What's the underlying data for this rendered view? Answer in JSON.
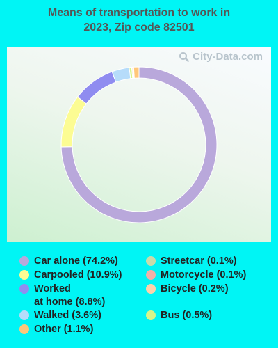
{
  "chart_data": {
    "type": "pie",
    "title_line1": "Means of transportation to work in",
    "title_line2": "2023, Zip code 82501",
    "watermark": "City-Data.com",
    "slices": [
      {
        "label": "Car alone (74.2%)",
        "value": 74.2,
        "color": "#b9a8db"
      },
      {
        "label": "Carpooled (10.9%)",
        "value": 10.9,
        "color": "#fcfc93"
      },
      {
        "label": "Worked\nat home (8.8%)",
        "value": 8.8,
        "color": "#8f8cf0"
      },
      {
        "label": "Walked (3.6%)",
        "value": 3.6,
        "color": "#b6dcfa"
      },
      {
        "label": "Other (1.1%)",
        "value": 1.1,
        "color": "#ffc77a"
      },
      {
        "label": "Streetcar (0.1%)",
        "value": 0.1,
        "color": "#c9dbaa"
      },
      {
        "label": "Motorcycle (0.1%)",
        "value": 0.1,
        "color": "#f2b0a8"
      },
      {
        "label": "Bicycle (0.2%)",
        "value": 0.2,
        "color": "#fcd2ab"
      },
      {
        "label": "Bus (0.5%)",
        "value": 0.5,
        "color": "#d6f58a"
      }
    ],
    "draw_order": [
      0,
      1,
      2,
      3,
      8,
      7,
      6,
      5,
      4
    ]
  }
}
